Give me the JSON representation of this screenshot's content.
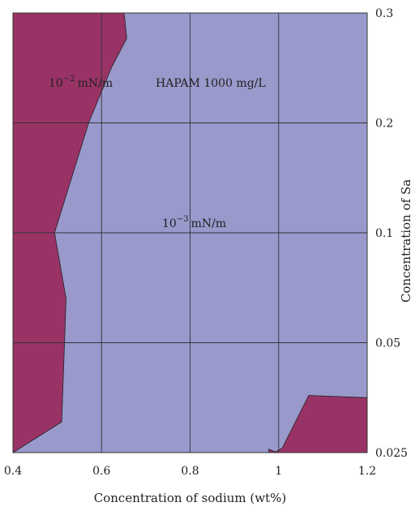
{
  "chart_data": {
    "type": "contour",
    "title": "",
    "xlabel": "Concentration of sodium (wt%)",
    "ylabel": "Concentration of Sa",
    "x_ticks": [
      0.4,
      0.6,
      0.8,
      1.0,
      1.2
    ],
    "x_tick_labels": [
      "0.4",
      "0.6",
      "0.8",
      "1",
      "1.2"
    ],
    "xlim": [
      0.4,
      1.2
    ],
    "y_scale": "categorical",
    "y_levels": [
      0.025,
      0.05,
      0.1,
      0.2,
      0.3
    ],
    "y_tick_labels": [
      "0.025",
      "0.05",
      "0.1",
      "0.2",
      "0.3"
    ],
    "grid": true,
    "y_axis_side": "right",
    "background_region": {
      "label": "10⁻³ mN/m",
      "color": "#9999cc"
    },
    "regions": [
      {
        "label": "10⁻² mN/m",
        "color": "#993366",
        "polygon": [
          [
            0.4,
            0.3
          ],
          [
            0.651,
            0.3
          ],
          [
            0.657,
            0.277
          ],
          [
            0.622,
            0.25
          ],
          [
            0.571,
            0.2
          ],
          [
            0.494,
            0.1
          ],
          [
            0.52,
            0.07
          ],
          [
            0.51,
            0.032
          ],
          [
            0.4,
            0.025
          ]
        ]
      },
      {
        "label": "",
        "color": "#993366",
        "polygon": [
          [
            1.003,
            0.025
          ],
          [
            1.2,
            0.025
          ],
          [
            1.2,
            0.0375
          ],
          [
            1.068,
            0.038
          ],
          [
            1.008,
            0.026
          ],
          [
            0.99,
            0.025
          ]
        ]
      },
      {
        "label": "",
        "color": "#993366",
        "polygon": [
          [
            0.978,
            0.025
          ],
          [
            0.996,
            0.025
          ],
          [
            0.978,
            0.0258
          ]
        ]
      }
    ],
    "annotations": [
      {
        "text_base": "10",
        "text_exp": "−2",
        "text_unit": "mN/m",
        "x": 0.52,
        "y": 0.26
      },
      {
        "text": "HAPAM 1000 mg/L",
        "x": 0.88,
        "y": 0.26
      },
      {
        "text_base": "10",
        "text_exp": "−3",
        "text_unit": "mN/m",
        "x": 0.78,
        "y": 0.11
      }
    ]
  }
}
